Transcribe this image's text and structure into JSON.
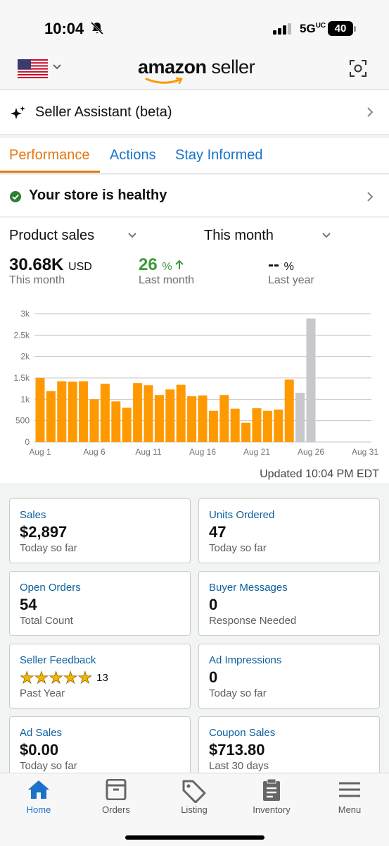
{
  "status_bar": {
    "time": "10:04",
    "network": "5G",
    "network_sub": "UC",
    "battery": "40"
  },
  "header": {
    "brand_bold": "amazon",
    "brand_light": "seller"
  },
  "assistant": {
    "label": "Seller Assistant (beta)"
  },
  "tabs": [
    {
      "label": "Performance",
      "active": true
    },
    {
      "label": "Actions",
      "active": false
    },
    {
      "label": "Stay Informed",
      "active": false
    }
  ],
  "health": {
    "label": "Your store is healthy"
  },
  "sales": {
    "metric_dropdown": "Product sales",
    "period_dropdown": "This month",
    "current": {
      "value": "30.68K",
      "unit": "USD",
      "caption": "This month"
    },
    "last_month": {
      "value": "26",
      "unit": "%",
      "caption": "Last month"
    },
    "last_year": {
      "value": "--",
      "unit": "%",
      "caption": "Last year"
    },
    "updated": "Updated 10:04 PM EDT"
  },
  "chart_data": {
    "type": "bar",
    "x_tick_labels": [
      "Aug 1",
      "Aug 6",
      "Aug 11",
      "Aug 16",
      "Aug 21",
      "Aug 26",
      "Aug 31"
    ],
    "y_tick_labels": [
      "0",
      "500",
      "1k",
      "1.5k",
      "2k",
      "2.5k",
      "3k"
    ],
    "ylim": [
      0,
      3000
    ],
    "days": [
      1,
      2,
      3,
      4,
      5,
      6,
      7,
      8,
      9,
      10,
      11,
      12,
      13,
      14,
      15,
      16,
      17,
      18,
      19,
      20,
      21,
      22,
      23,
      24,
      25,
      26
    ],
    "values": [
      1500,
      1190,
      1420,
      1410,
      1420,
      1000,
      1360,
      950,
      800,
      1380,
      1330,
      1100,
      1230,
      1340,
      1070,
      1090,
      730,
      1100,
      780,
      450,
      790,
      730,
      760,
      1460,
      1150,
      2890
    ],
    "highlight_days": [
      25,
      26
    ],
    "colors": {
      "bar": "#ff9900",
      "highlight": "#c8c8cc",
      "grid": "#c4c4c4"
    }
  },
  "cards": [
    {
      "title": "Sales",
      "value": "$2,897",
      "caption": "Today so far"
    },
    {
      "title": "Units Ordered",
      "value": "47",
      "caption": "Today so far"
    },
    {
      "title": "Open Orders",
      "value": "54",
      "caption": "Total Count"
    },
    {
      "title": "Buyer Messages",
      "value": "0",
      "caption": "Response Needed"
    },
    {
      "title": "Seller Feedback",
      "rating": 5,
      "rating_count": "13",
      "caption": "Past Year"
    },
    {
      "title": "Ad Impressions",
      "value": "0",
      "caption": "Today so far"
    },
    {
      "title": "Ad Sales",
      "value": "$0.00",
      "caption": "Today so far"
    },
    {
      "title": "Coupon Sales",
      "value": "$713.80",
      "caption": "Last 30 days"
    }
  ],
  "bottom_nav": [
    {
      "label": "Home",
      "icon": "home-icon",
      "active": true
    },
    {
      "label": "Orders",
      "icon": "orders-icon",
      "active": false
    },
    {
      "label": "Listing",
      "icon": "tag-icon",
      "active": false
    },
    {
      "label": "Inventory",
      "icon": "clipboard-icon",
      "active": false
    },
    {
      "label": "Menu",
      "icon": "menu-icon",
      "active": false
    }
  ]
}
